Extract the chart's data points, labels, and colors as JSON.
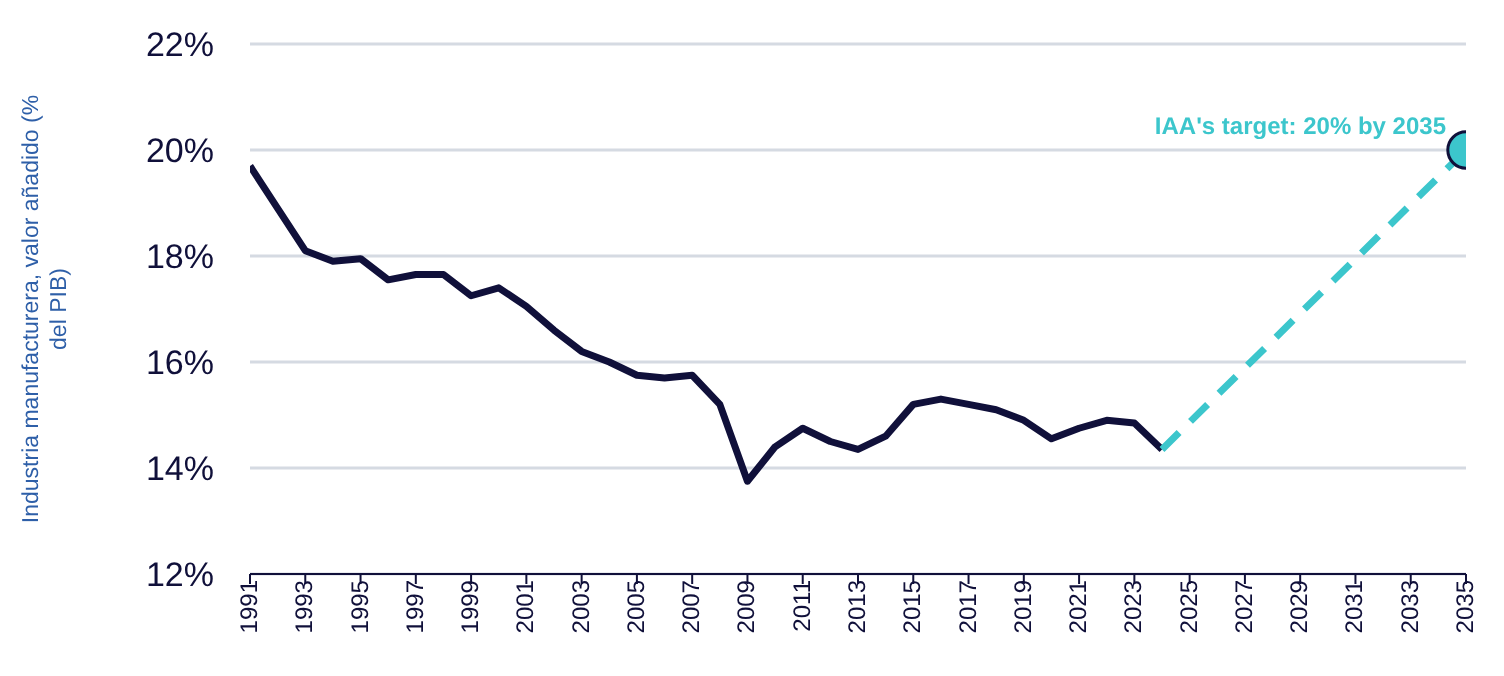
{
  "chart_data": {
    "type": "line",
    "ylabel": "Industria manufacturera, valor añadido (% del PIB)",
    "xlim": [
      1991,
      2035
    ],
    "xticks": [
      1991,
      1993,
      1995,
      1997,
      1999,
      2001,
      2003,
      2005,
      2007,
      2009,
      2011,
      2013,
      2015,
      2017,
      2019,
      2021,
      2023,
      2025,
      2027,
      2029,
      2031,
      2033,
      2035
    ],
    "ylim": [
      12,
      22
    ],
    "yticks": [
      {
        "value": 12,
        "label": "12%"
      },
      {
        "value": 14,
        "label": "14%"
      },
      {
        "value": 16,
        "label": "16%"
      },
      {
        "value": 18,
        "label": "18%"
      },
      {
        "value": 20,
        "label": "20%"
      },
      {
        "value": 22,
        "label": "22%"
      }
    ],
    "grid": "y",
    "series": [
      {
        "color": "#10103a",
        "line_style": "solid",
        "marker": "none",
        "x": [
          1991,
          1992,
          1993,
          1994,
          1995,
          1996,
          1997,
          1998,
          1999,
          2000,
          2001,
          2002,
          2003,
          2004,
          2005,
          2006,
          2007,
          2008,
          2009,
          2010,
          2011,
          2012,
          2013,
          2014,
          2015,
          2016,
          2017,
          2018,
          2019,
          2020,
          2021,
          2022,
          2023,
          2024
        ],
        "values": [
          19.7,
          18.9,
          18.1,
          17.9,
          17.95,
          17.55,
          17.65,
          17.65,
          17.25,
          17.4,
          17.05,
          16.6,
          16.2,
          16.0,
          15.75,
          15.7,
          15.75,
          15.2,
          13.75,
          14.4,
          14.75,
          14.5,
          14.35,
          14.6,
          15.2,
          15.3,
          15.2,
          15.1,
          14.9,
          14.55,
          14.75,
          14.9,
          14.85,
          14.35
        ]
      },
      {
        "color": "#3cc6cc",
        "line_style": "dashed",
        "marker": "none",
        "x": [
          2024,
          2035
        ],
        "values": [
          14.35,
          20
        ]
      },
      {
        "type": "scatter",
        "color": "#3cc6cc",
        "marker": "circle",
        "x": [
          2035
        ],
        "values": [
          20
        ]
      }
    ],
    "annotations": [
      {
        "text": "IAA's target: 20% by 2035",
        "x": 2035,
        "y": 20
      }
    ]
  }
}
